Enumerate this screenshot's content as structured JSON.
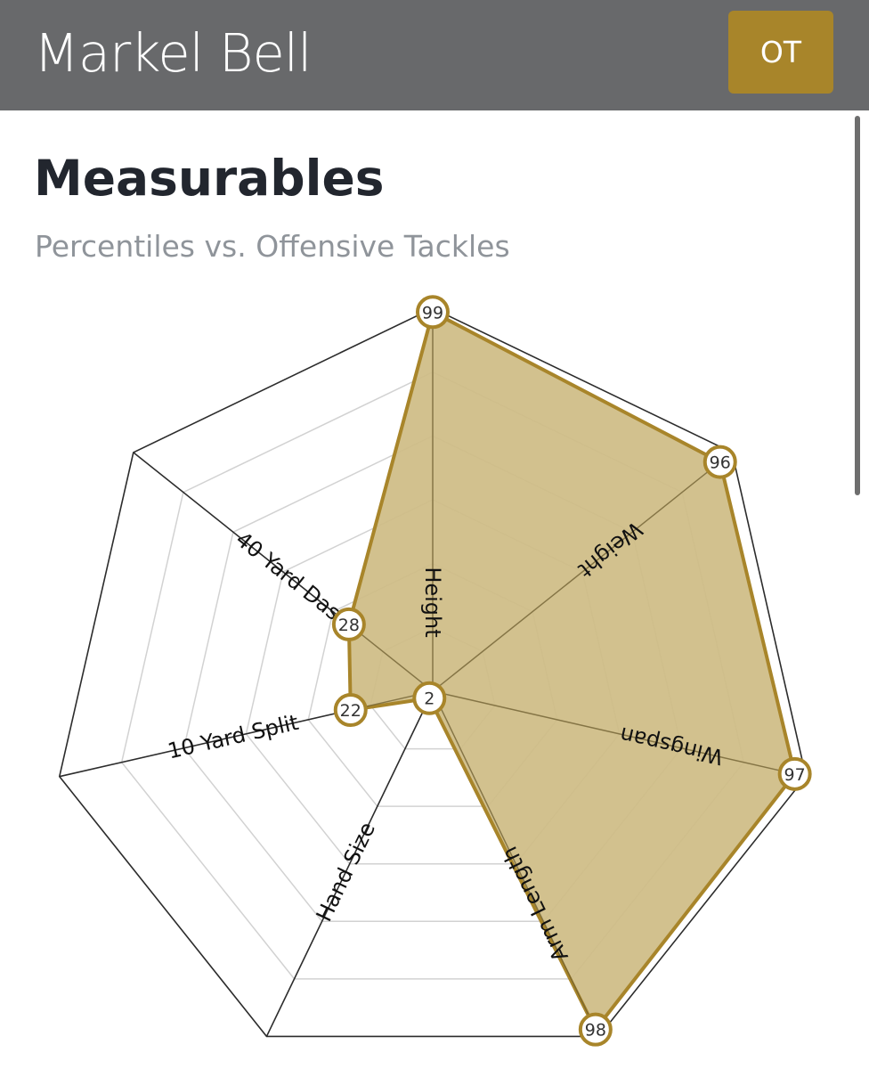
{
  "header": {
    "player_name": "Markel Bell",
    "position": "OT"
  },
  "section": {
    "title": "Measurables",
    "subtitle": "Percentiles vs. Offensive Tackles"
  },
  "colors": {
    "header_bg": "#68696b",
    "accent": "#a8852a",
    "fill": "#cfbc85",
    "title": "#22262e",
    "subtitle": "#8f949a"
  },
  "chart_data": {
    "type": "radar",
    "axes": [
      "Height",
      "Weight",
      "Wingspan",
      "Arm Length",
      "Hand Size",
      "10 Yard Split",
      "40 Yard Dash"
    ],
    "series": [
      {
        "values": [
          99,
          96,
          97,
          98,
          2,
          22,
          28
        ]
      }
    ],
    "range": [
      0,
      100
    ],
    "grid": true
  }
}
